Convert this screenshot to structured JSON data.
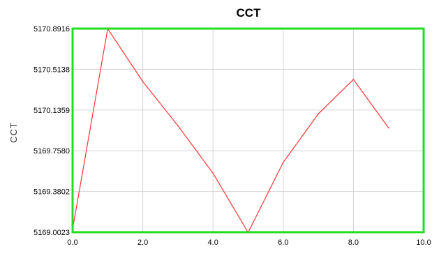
{
  "chart_data": {
    "type": "line",
    "title": "CCT",
    "xlabel": "",
    "ylabel": "CCT",
    "xlim": [
      0.0,
      10.0
    ],
    "ylim": [
      5169.0023,
      5170.8916
    ],
    "x_ticks": [
      "0.0",
      "2.0",
      "4.0",
      "6.0",
      "8.0",
      "10.0"
    ],
    "x_tick_values": [
      0,
      2,
      4,
      6,
      8,
      10
    ],
    "y_ticks": [
      "5169.0023",
      "5169.3802",
      "5169.7580",
      "5170.1359",
      "5170.5138",
      "5170.8916"
    ],
    "y_tick_values": [
      5169.0023,
      5169.3802,
      5169.758,
      5170.1359,
      5170.5138,
      5170.8916
    ],
    "grid": true,
    "series": [
      {
        "color": "#ff3333",
        "x": [
          0,
          1,
          2,
          3,
          4,
          5,
          6,
          7,
          8,
          9
        ],
        "y": [
          5169.03,
          5170.89,
          5170.4,
          5169.99,
          5169.55,
          5169.0,
          5169.65,
          5170.1,
          5170.42,
          5169.97
        ]
      }
    ],
    "colors": {
      "plot_border": "#22dd22",
      "grid": "#d4d4d4",
      "line": "#ff3333"
    }
  }
}
